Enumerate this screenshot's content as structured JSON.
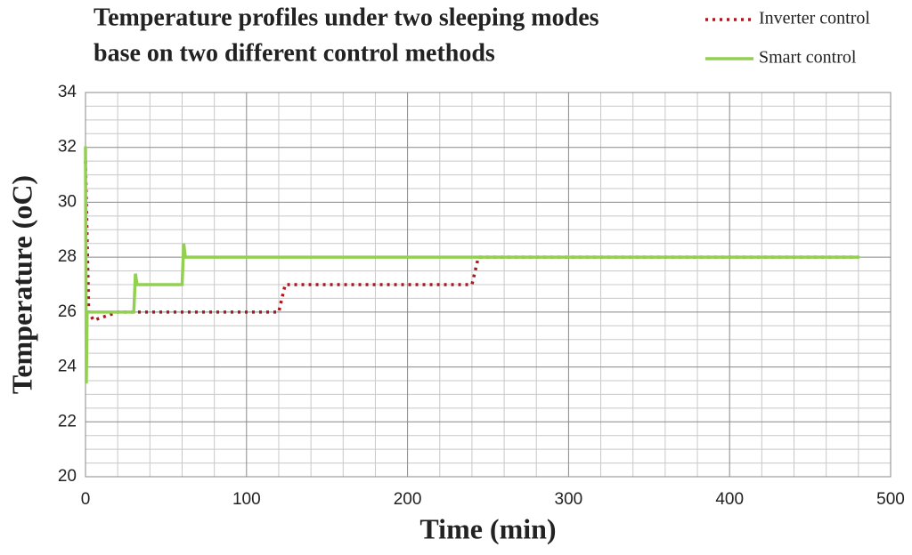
{
  "chart_data": {
    "type": "line",
    "title": [
      "Temperature profiles under two sleeping modes",
      "base on two different control methods"
    ],
    "x_label": "Time (min)",
    "y_label": "Temperature (oC)",
    "xlim": [
      0,
      500
    ],
    "xticks": [
      0,
      100,
      200,
      300,
      400,
      500
    ],
    "ylim": [
      20,
      34
    ],
    "yticks": [
      20,
      22,
      24,
      26,
      28,
      30,
      32,
      34
    ],
    "grid": true,
    "series": [
      {
        "name": "Inverter control",
        "color": "#a8181e",
        "style": "dotted",
        "x": [
          0,
          2,
          5,
          10,
          20,
          120,
          124,
          240,
          244,
          480
        ],
        "values": [
          31.5,
          26,
          25.7,
          25.8,
          26,
          26,
          27,
          27,
          28,
          28
        ]
      },
      {
        "name": "Smart control",
        "color": "#92d050",
        "style": "solid",
        "x": [
          0,
          0.5,
          1,
          30,
          31,
          32,
          60,
          61,
          62,
          480
        ],
        "values": [
          32,
          23.4,
          26,
          26,
          27.4,
          27,
          27,
          28.5,
          28,
          28
        ]
      }
    ]
  }
}
